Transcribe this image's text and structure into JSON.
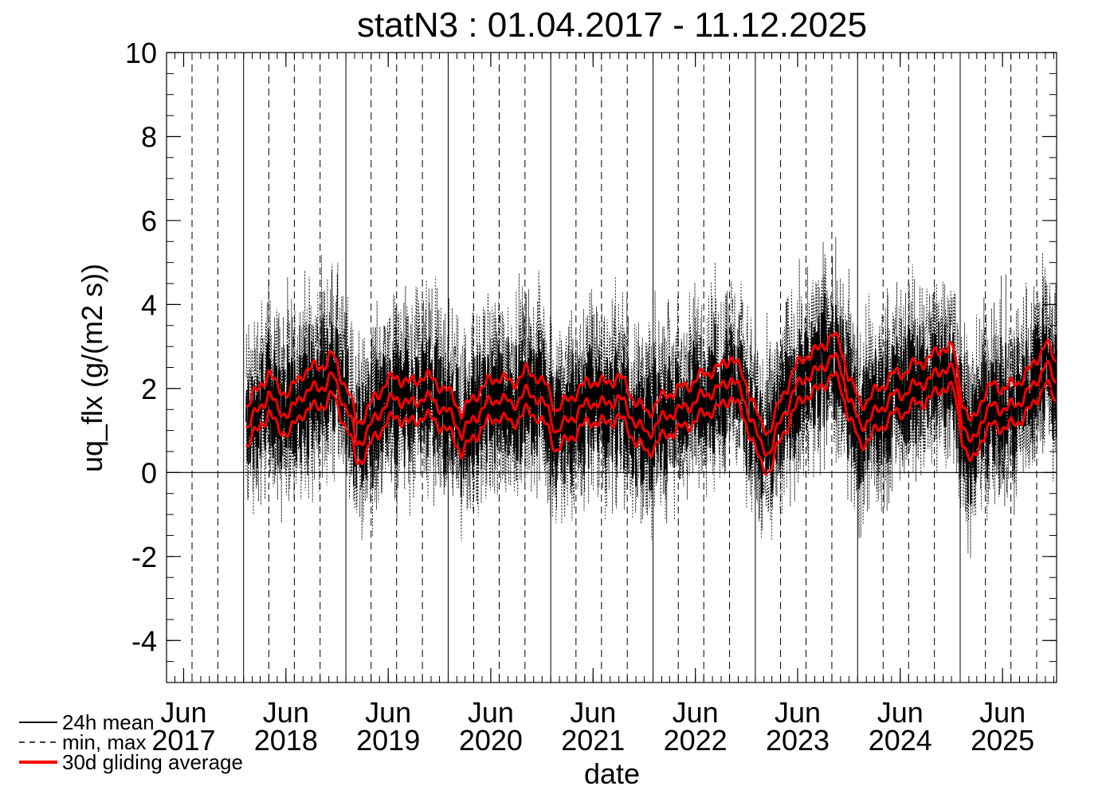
{
  "chart_data": {
    "type": "line",
    "title": "statN3 : 01.04.2017 - 11.12.2025",
    "xlabel": "date",
    "ylabel": "uq_flx (g/(m2 s))",
    "xlim": [
      "2017-04-01",
      "2025-12-11"
    ],
    "ylim": [
      -5,
      10
    ],
    "y_ticks": [
      {
        "value": -4,
        "label": "-4"
      },
      {
        "value": -2,
        "label": "-2"
      },
      {
        "value": 0,
        "label": "0"
      },
      {
        "value": 2,
        "label": "2"
      },
      {
        "value": 4,
        "label": "4"
      },
      {
        "value": 6,
        "label": "6"
      },
      {
        "value": 8,
        "label": "8"
      },
      {
        "value": 10,
        "label": "10"
      }
    ],
    "y_minor_step": 0.5,
    "x_ticks": [
      {
        "date": "2017-06-01",
        "month": "Jun",
        "year": "2017"
      },
      {
        "date": "2018-06-01",
        "month": "Jun",
        "year": "2018"
      },
      {
        "date": "2019-06-01",
        "month": "Jun",
        "year": "2019"
      },
      {
        "date": "2020-06-01",
        "month": "Jun",
        "year": "2020"
      },
      {
        "date": "2021-06-01",
        "month": "Jun",
        "year": "2021"
      },
      {
        "date": "2022-06-01",
        "month": "Jun",
        "year": "2022"
      },
      {
        "date": "2023-06-01",
        "month": "Jun",
        "year": "2023"
      },
      {
        "date": "2024-06-01",
        "month": "Jun",
        "year": "2024"
      },
      {
        "date": "2025-06-01",
        "month": "Jun",
        "year": "2025"
      }
    ],
    "year_gridlines": [
      "2018-01-01",
      "2019-01-01",
      "2020-01-01",
      "2021-01-01",
      "2022-01-01",
      "2023-01-01",
      "2024-01-01",
      "2025-01-01"
    ],
    "quarter_gridlines": [
      "2017-04-01",
      "2017-07-01",
      "2017-10-01",
      "2018-04-01",
      "2018-07-01",
      "2018-10-01",
      "2019-04-01",
      "2019-07-01",
      "2019-10-01",
      "2020-04-01",
      "2020-07-01",
      "2020-10-01",
      "2021-04-01",
      "2021-07-01",
      "2021-10-01",
      "2022-04-01",
      "2022-07-01",
      "2022-10-01",
      "2023-04-01",
      "2023-07-01",
      "2023-10-01",
      "2024-04-01",
      "2024-07-01",
      "2024-10-01",
      "2025-04-01",
      "2025-07-01",
      "2025-10-01"
    ],
    "zero_line": 0,
    "grid": true,
    "legend_position": "bottom-left",
    "legend": [
      {
        "label": "24h mean",
        "style": "solid",
        "color": "#000000"
      },
      {
        "label": "min, max",
        "style": "dashed",
        "color": "#000000"
      },
      {
        "label": "30d gliding average",
        "style": "solid-thick",
        "color": "#ff0000"
      }
    ],
    "series": [
      {
        "name": "24h mean",
        "color": "#000000",
        "style": "noisy-band",
        "description_points": [
          [
            "2018-01-15",
            1.3
          ],
          [
            "2018-03-01",
            1.6
          ],
          [
            "2018-05-01",
            1.4
          ],
          [
            "2018-07-15",
            2.0
          ],
          [
            "2018-09-01",
            2.2
          ],
          [
            "2018-11-15",
            2.5
          ],
          [
            "2018-12-20",
            1.5
          ],
          [
            "2019-02-15",
            0.7
          ],
          [
            "2019-04-15",
            1.4
          ],
          [
            "2019-07-01",
            1.6
          ],
          [
            "2019-09-15",
            1.7
          ],
          [
            "2019-12-01",
            1.5
          ],
          [
            "2020-02-01",
            0.9
          ],
          [
            "2020-05-01",
            1.6
          ],
          [
            "2020-08-01",
            1.8
          ],
          [
            "2020-11-01",
            2.0
          ],
          [
            "2021-01-01",
            1.4
          ],
          [
            "2021-04-01",
            1.3
          ],
          [
            "2021-07-01",
            1.8
          ],
          [
            "2021-10-01",
            1.5
          ],
          [
            "2022-01-01",
            1.3
          ],
          [
            "2022-04-01",
            1.4
          ],
          [
            "2022-07-01",
            1.7
          ],
          [
            "2022-10-15",
            2.0
          ],
          [
            "2023-01-15",
            0.6
          ],
          [
            "2023-04-01",
            1.5
          ],
          [
            "2023-07-01",
            2.2
          ],
          [
            "2023-10-01",
            2.7
          ],
          [
            "2024-01-15",
            0.9
          ],
          [
            "2024-04-01",
            1.4
          ],
          [
            "2024-07-15",
            1.8
          ],
          [
            "2024-11-01",
            2.3
          ],
          [
            "2025-01-20",
            0.6
          ],
          [
            "2025-04-01",
            1.6
          ],
          [
            "2025-07-01",
            1.6
          ],
          [
            "2025-10-15",
            2.4
          ],
          [
            "2025-12-11",
            2.0
          ]
        ]
      },
      {
        "name": "min, max",
        "color": "#000000",
        "style": "dashed"
      },
      {
        "name": "30d gliding average (mean)",
        "color": "#ff0000",
        "x": [
          "2018-01-10",
          "2018-02-15",
          "2018-04-01",
          "2018-05-01",
          "2018-06-15",
          "2018-08-01",
          "2018-09-15",
          "2018-10-20",
          "2018-11-15",
          "2018-12-10",
          "2019-01-10",
          "2019-02-10",
          "2019-03-15",
          "2019-04-15",
          "2019-05-20",
          "2019-07-01",
          "2019-08-15",
          "2019-10-01",
          "2019-11-15",
          "2019-12-15",
          "2020-01-20",
          "2020-02-20",
          "2020-04-01",
          "2020-05-15",
          "2020-07-01",
          "2020-08-15",
          "2020-10-01",
          "2020-11-15",
          "2020-12-20",
          "2021-01-20",
          "2021-03-01",
          "2021-04-15",
          "2021-06-01",
          "2021-07-15",
          "2021-09-01",
          "2021-10-01",
          "2021-11-01",
          "2021-12-10",
          "2022-01-20",
          "2022-03-01",
          "2022-04-15",
          "2022-06-01",
          "2022-07-15",
          "2022-09-01",
          "2022-10-10",
          "2022-11-15",
          "2022-12-20",
          "2023-01-20",
          "2023-02-20",
          "2023-04-01",
          "2023-05-15",
          "2023-07-01",
          "2023-08-15",
          "2023-10-01",
          "2023-11-01",
          "2023-12-01",
          "2024-01-10",
          "2024-02-15",
          "2024-03-20",
          "2024-05-01",
          "2024-06-15",
          "2024-08-01",
          "2024-09-15",
          "2024-11-01",
          "2024-12-10",
          "2025-01-10",
          "2025-02-10",
          "2025-03-20",
          "2025-05-01",
          "2025-06-15",
          "2025-08-01",
          "2025-09-15",
          "2025-11-01",
          "2025-12-11"
        ],
        "values": [
          1.1,
          1.4,
          1.9,
          1.5,
          1.4,
          1.9,
          2.0,
          2.1,
          2.3,
          1.9,
          1.4,
          0.7,
          0.9,
          1.3,
          1.6,
          1.8,
          1.6,
          1.8,
          1.7,
          1.5,
          1.3,
          0.9,
          1.3,
          1.6,
          1.8,
          1.6,
          1.9,
          1.8,
          1.5,
          1.0,
          1.2,
          1.5,
          1.7,
          1.6,
          1.8,
          1.5,
          1.2,
          0.9,
          1.2,
          1.4,
          1.5,
          1.7,
          1.9,
          2.0,
          2.3,
          1.8,
          1.3,
          0.6,
          0.5,
          1.2,
          1.9,
          2.3,
          2.4,
          2.8,
          2.5,
          1.8,
          1.1,
          1.3,
          1.5,
          1.8,
          1.9,
          2.1,
          2.2,
          2.5,
          2.4,
          1.2,
          0.6,
          1.3,
          1.6,
          1.5,
          1.7,
          2.0,
          2.6,
          2.1
        ]
      },
      {
        "name": "30d gliding average (max)",
        "color": "#ff0000",
        "offset_from_mean": 0.5
      },
      {
        "name": "30d gliding average (min)",
        "color": "#ff0000",
        "offset_from_mean": -0.45
      }
    ]
  }
}
